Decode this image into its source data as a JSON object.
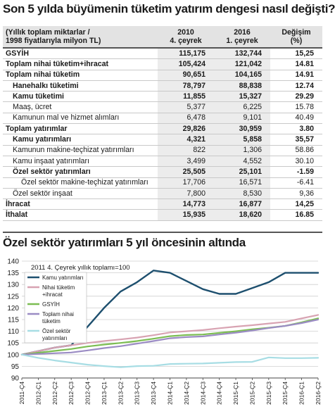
{
  "table_title": "Son 5 yılda büyümenin tüketim yatırım dengesi nasıl değişti?",
  "table": {
    "headers": [
      "(Yıllık toplam miktarlar /\n1998 fiyatlarıyla milyon TL)",
      "2010\n4. çeyrek",
      "2016\n1. çeyrek",
      "Değişim\n(%)"
    ],
    "rows": [
      {
        "label": "GSYİH",
        "v2010": "115,175",
        "v2016": "132,744",
        "change": "15,25",
        "bold": true,
        "indent": 0
      },
      {
        "label": "Toplam nihai tüketim+ihracat",
        "v2010": "105,424",
        "v2016": "121,042",
        "change": "14.81",
        "bold": true,
        "indent": 0
      },
      {
        "label": "Toplam nihai tüketim",
        "v2010": "90,651",
        "v2016": "104,165",
        "change": "14.91",
        "bold": true,
        "indent": 0
      },
      {
        "label": "Hanehalkı tüketimi",
        "v2010": "78,797",
        "v2016": "88,838",
        "change": "12.74",
        "bold": true,
        "indent": 1
      },
      {
        "label": "Kamu tüketimi",
        "v2010": "11,855",
        "v2016": "15,327",
        "change": "29.29",
        "bold": true,
        "indent": 1
      },
      {
        "label": "Maaş, ücret",
        "v2010": "5,377",
        "v2016": "6,225",
        "change": "15.78",
        "bold": false,
        "indent": 2
      },
      {
        "label": "Kamunun mal ve hizmet alımları",
        "v2010": "6,478",
        "v2016": "9,101",
        "change": "40.49",
        "bold": false,
        "indent": 2
      },
      {
        "label": "Toplam yatırımlar",
        "v2010": "29,826",
        "v2016": "30,959",
        "change": "3.80",
        "bold": true,
        "indent": 0
      },
      {
        "label": "Kamu yatırımları",
        "v2010": "4,321",
        "v2016": "5,858",
        "change": "35,57",
        "bold": true,
        "indent": 1
      },
      {
        "label": "Kamunun makine-teçhizat yatırımları",
        "v2010": "822",
        "v2016": "1,306",
        "change": "58.86",
        "bold": false,
        "indent": 2
      },
      {
        "label": "Kamu inşaat yatırımları",
        "v2010": "3,499",
        "v2016": "4,552",
        "change": "30.10",
        "bold": false,
        "indent": 2
      },
      {
        "label": "Özel sektör yatırımları",
        "v2010": "25,505",
        "v2016": "25,101",
        "change": "-1.59",
        "bold": true,
        "indent": 1
      },
      {
        "label": "Özel sektör makine-teçhizat yatırımları",
        "v2010": "17,706",
        "v2016": "16,571",
        "change": "-6.41",
        "bold": false,
        "indent": 3
      },
      {
        "label": "Özel sektör inşaat",
        "v2010": "7,800",
        "v2016": "8,530",
        "change": "9,36",
        "bold": false,
        "indent": 1
      },
      {
        "label": "İhracat",
        "v2010": "14,773",
        "v2016": "16,877",
        "change": "14,25",
        "bold": true,
        "indent": 0
      },
      {
        "label": "İthalat",
        "v2010": "15,935",
        "v2016": "18,620",
        "change": "16.85",
        "bold": true,
        "indent": 0
      }
    ]
  },
  "chart_title": "Özel sektör yatırımları 5 yıl öncesinin altında",
  "chart_data": {
    "type": "line",
    "subtitle": "2011 4. Çeyrek yıllık toplamı=100",
    "categories": [
      "2011-Ç4",
      "2012-Ç1",
      "2012-Ç2",
      "2012-Ç3",
      "2012-Ç4",
      "2013-Ç1",
      "2013-Ç2",
      "2013-Ç3",
      "2013-Ç4",
      "2014-Ç1",
      "2014-Ç2",
      "2014-Ç3",
      "2014-Ç4",
      "2015-Ç1",
      "2015-Ç2",
      "2015-Ç3",
      "2015-Ç4",
      "2016-Ç1",
      "2016-Ç2"
    ],
    "ylim": [
      90,
      140
    ],
    "yticks": [
      90,
      95,
      100,
      105,
      110,
      115,
      120,
      125,
      130,
      135,
      140
    ],
    "legend_position": "top-left",
    "series": [
      {
        "name": "Kamu yatırımları",
        "color": "#1d4f6e",
        "width": 2.4,
        "values": [
          100,
          101.5,
          103,
          104,
          112,
          120,
          127,
          131,
          136,
          135,
          131.5,
          128,
          126,
          126,
          128.5,
          131,
          135,
          135,
          135
        ]
      },
      {
        "name": "Nihai tüketim +ihracat",
        "color": "#d8a3b2",
        "width": 2.2,
        "values": [
          100,
          101.5,
          103,
          104,
          105,
          105.8,
          106.5,
          107.3,
          108.3,
          109.5,
          110,
          110.5,
          111.3,
          112,
          112.6,
          113.3,
          114,
          115.5,
          117
        ]
      },
      {
        "name": "GSYİH",
        "color": "#7cbd52",
        "width": 2.2,
        "values": [
          100,
          100.8,
          101.6,
          102.4,
          103.5,
          104.3,
          105,
          105.8,
          106.8,
          107.9,
          108.4,
          108.6,
          109.3,
          110,
          110.8,
          111.5,
          112.3,
          113.8,
          115.5
        ]
      },
      {
        "name": "Toplam nihai tüketim",
        "color": "#9b8cc4",
        "width": 2.2,
        "values": [
          100,
          100.3,
          100.6,
          100.9,
          101.8,
          102.8,
          103.6,
          104.7,
          105.8,
          107,
          107.5,
          107.8,
          108.6,
          109.4,
          110.3,
          111.4,
          112.3,
          113.5,
          115
        ]
      },
      {
        "name": "Özel sektör yatırımları",
        "color": "#a7dde4",
        "width": 2.2,
        "values": [
          100,
          98.6,
          97.5,
          96.6,
          95.7,
          95.1,
          94.6,
          95.1,
          95.2,
          96,
          96.1,
          96.2,
          96.5,
          96.8,
          96.9,
          98.8,
          98.5,
          98.5,
          98.6
        ]
      }
    ]
  }
}
